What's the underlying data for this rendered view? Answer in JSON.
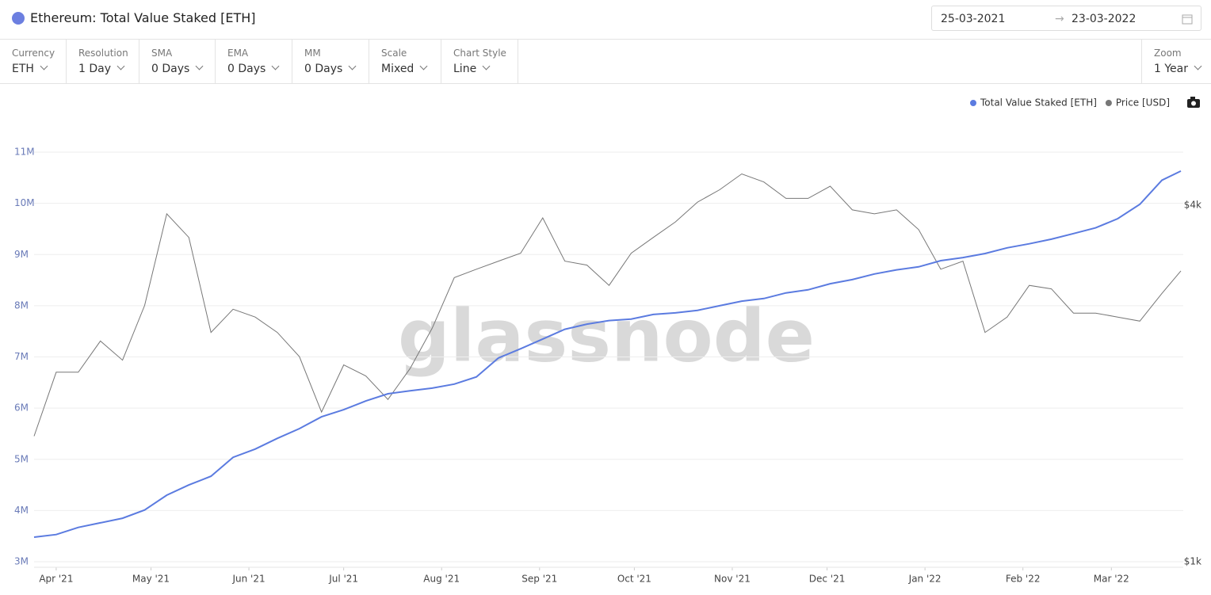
{
  "header": {
    "title": "Ethereum: Total Value Staked [ETH]",
    "date_from": "25-03-2021",
    "date_to": "23-03-2022"
  },
  "toolbar": {
    "controls": [
      {
        "label": "Currency",
        "value": "ETH"
      },
      {
        "label": "Resolution",
        "value": "1 Day"
      },
      {
        "label": "SMA",
        "value": "0 Days"
      },
      {
        "label": "EMA",
        "value": "0 Days"
      },
      {
        "label": "MM",
        "value": "0 Days"
      },
      {
        "label": "Scale",
        "value": "Mixed"
      },
      {
        "label": "Chart Style",
        "value": "Line"
      }
    ],
    "zoom": {
      "label": "Zoom",
      "value": "1 Year"
    }
  },
  "chart_data": {
    "type": "line",
    "watermark": "glassnode",
    "grid": true,
    "legend": "top-right",
    "y2scale": "log",
    "x": [
      "2021-03-25",
      "2021-04-01",
      "2021-04-08",
      "2021-04-15",
      "2021-04-22",
      "2021-04-29",
      "2021-05-06",
      "2021-05-13",
      "2021-05-20",
      "2021-05-27",
      "2021-06-03",
      "2021-06-10",
      "2021-06-17",
      "2021-06-24",
      "2021-07-01",
      "2021-07-08",
      "2021-07-15",
      "2021-07-22",
      "2021-07-29",
      "2021-08-05",
      "2021-08-12",
      "2021-08-19",
      "2021-08-26",
      "2021-09-02",
      "2021-09-09",
      "2021-09-16",
      "2021-09-23",
      "2021-09-30",
      "2021-10-07",
      "2021-10-14",
      "2021-10-21",
      "2021-10-28",
      "2021-11-04",
      "2021-11-11",
      "2021-11-18",
      "2021-11-25",
      "2021-12-02",
      "2021-12-09",
      "2021-12-16",
      "2021-12-23",
      "2021-12-30",
      "2022-01-06",
      "2022-01-13",
      "2022-01-20",
      "2022-01-27",
      "2022-02-03",
      "2022-02-10",
      "2022-02-17",
      "2022-02-24",
      "2022-03-03",
      "2022-03-10",
      "2022-03-17",
      "2022-03-23"
    ],
    "xlim": [
      "2021-03-25",
      "2022-03-23"
    ],
    "xticks": [
      {
        "value": "2021-04-01",
        "label": "Apr '21"
      },
      {
        "value": "2021-05-01",
        "label": "May '21"
      },
      {
        "value": "2021-06-01",
        "label": "Jun '21"
      },
      {
        "value": "2021-07-01",
        "label": "Jul '21"
      },
      {
        "value": "2021-08-01",
        "label": "Aug '21"
      },
      {
        "value": "2021-09-01",
        "label": "Sep '21"
      },
      {
        "value": "2021-10-01",
        "label": "Oct '21"
      },
      {
        "value": "2021-11-01",
        "label": "Nov '21"
      },
      {
        "value": "2021-12-01",
        "label": "Dec '21"
      },
      {
        "value": "2022-01-01",
        "label": "Jan '22"
      },
      {
        "value": "2022-02-01",
        "label": "Feb '22"
      },
      {
        "value": "2022-03-01",
        "label": "Mar '22"
      }
    ],
    "ylim": [
      3000000,
      11000000
    ],
    "yticks": [
      {
        "value": 3000000,
        "label": "3M"
      },
      {
        "value": 4000000,
        "label": "4M"
      },
      {
        "value": 5000000,
        "label": "5M"
      },
      {
        "value": 6000000,
        "label": "6M"
      },
      {
        "value": 7000000,
        "label": "7M"
      },
      {
        "value": 8000000,
        "label": "8M"
      },
      {
        "value": 9000000,
        "label": "9M"
      },
      {
        "value": 10000000,
        "label": "10M"
      },
      {
        "value": 11000000,
        "label": "11M"
      }
    ],
    "y2lim": [
      1000,
      4920
    ],
    "y2ticks": [
      {
        "value": 1000,
        "label": "$1k"
      },
      {
        "value": 4000,
        "label": "$4k"
      }
    ],
    "series": [
      {
        "name": "Total Value Staked [ETH]",
        "color": "#5b7be0",
        "values": [
          3480000,
          3530000,
          3670000,
          3760000,
          3850000,
          4010000,
          4300000,
          4500000,
          4670000,
          5040000,
          5200000,
          5410000,
          5600000,
          5830000,
          5970000,
          6140000,
          6280000,
          6340000,
          6390000,
          6470000,
          6610000,
          6980000,
          7160000,
          7350000,
          7540000,
          7640000,
          7710000,
          7740000,
          7830000,
          7860000,
          7910000,
          8000000,
          8090000,
          8140000,
          8250000,
          8310000,
          8430000,
          8510000,
          8620000,
          8700000,
          8760000,
          8880000,
          8940000,
          9020000,
          9130000,
          9210000,
          9300000,
          9410000,
          9520000,
          9700000,
          9980000,
          10450000,
          10630000
        ]
      },
      {
        "name": "Price [USD]",
        "color": "#777777",
        "axis": "y2",
        "values": [
          1630,
          2090,
          2090,
          2360,
          2190,
          2710,
          3870,
          3530,
          2440,
          2670,
          2590,
          2440,
          2220,
          1790,
          2150,
          2060,
          1880,
          2120,
          2480,
          3020,
          3120,
          3220,
          3320,
          3810,
          3220,
          3170,
          2930,
          3320,
          3530,
          3750,
          4050,
          4250,
          4520,
          4380,
          4110,
          4110,
          4310,
          3930,
          3870,
          3930,
          3640,
          3120,
          3220,
          2440,
          2590,
          2930,
          2890,
          2630,
          2630,
          2590,
          2550,
          2840,
          3100
        ]
      }
    ]
  }
}
